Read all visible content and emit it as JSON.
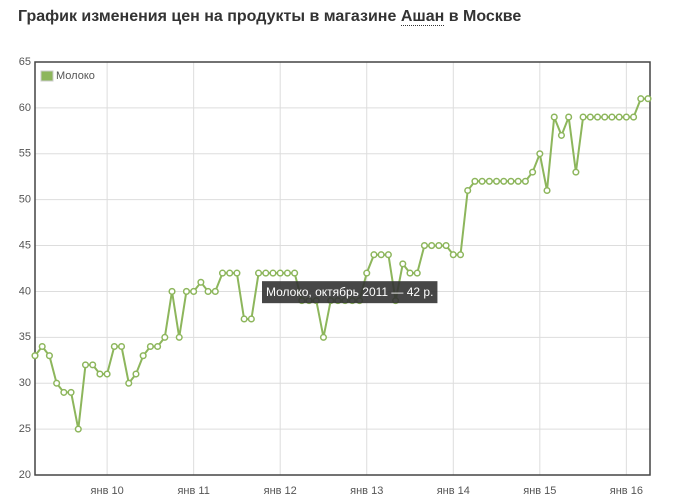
{
  "chart_data": {
    "type": "line",
    "title": "График изменения цен на продукты в магазине",
    "title_link": "Ашан",
    "title_end": "в Москве",
    "categories": [
      null,
      null,
      null,
      null,
      null,
      null,
      null,
      null,
      null,
      null,
      "янв 10",
      null,
      null,
      null,
      null,
      null,
      null,
      null,
      null,
      null,
      null,
      null,
      "янв 11",
      null,
      null,
      null,
      null,
      null,
      null,
      null,
      null,
      null,
      null,
      null,
      "янв 12",
      null,
      null,
      null,
      null,
      null,
      null,
      null,
      null,
      null,
      null,
      null,
      "янв 13",
      null,
      null,
      null,
      null,
      null,
      null,
      null,
      null,
      null,
      null,
      null,
      "янв 14",
      null,
      null,
      null,
      null,
      null,
      null,
      null,
      null,
      null,
      null,
      null,
      "янв 15",
      null,
      null,
      null,
      null,
      null,
      null,
      null,
      null,
      null,
      null,
      null,
      "янв 16",
      null,
      null,
      null
    ],
    "series": [
      {
        "name": "Молоко",
        "color": "#8db65c",
        "values": [
          33,
          34,
          33,
          30,
          29,
          29,
          25,
          32,
          32,
          31,
          31,
          34,
          34,
          30,
          31,
          33,
          34,
          34,
          35,
          40,
          35,
          40,
          40,
          41,
          40,
          40,
          42,
          42,
          42,
          37,
          37,
          42,
          42,
          42,
          42,
          42,
          42,
          39,
          39,
          39,
          35,
          39,
          39,
          39,
          39,
          39,
          42,
          44,
          44,
          44,
          39,
          43,
          42,
          42,
          45,
          45,
          45,
          45,
          44,
          44,
          51,
          52,
          52,
          52,
          52,
          52,
          52,
          52,
          52,
          53,
          55,
          51,
          59,
          57,
          59,
          53,
          59,
          59,
          59,
          59,
          59,
          59,
          59,
          59,
          61,
          61
        ]
      }
    ],
    "ylim": [
      20,
      65
    ],
    "yticks": [
      20,
      25,
      30,
      35,
      40,
      45,
      50,
      55,
      60,
      65
    ],
    "grid": true,
    "legend": "top-left",
    "tooltip": "Молоко, октябрь 2011 — 42 р."
  }
}
